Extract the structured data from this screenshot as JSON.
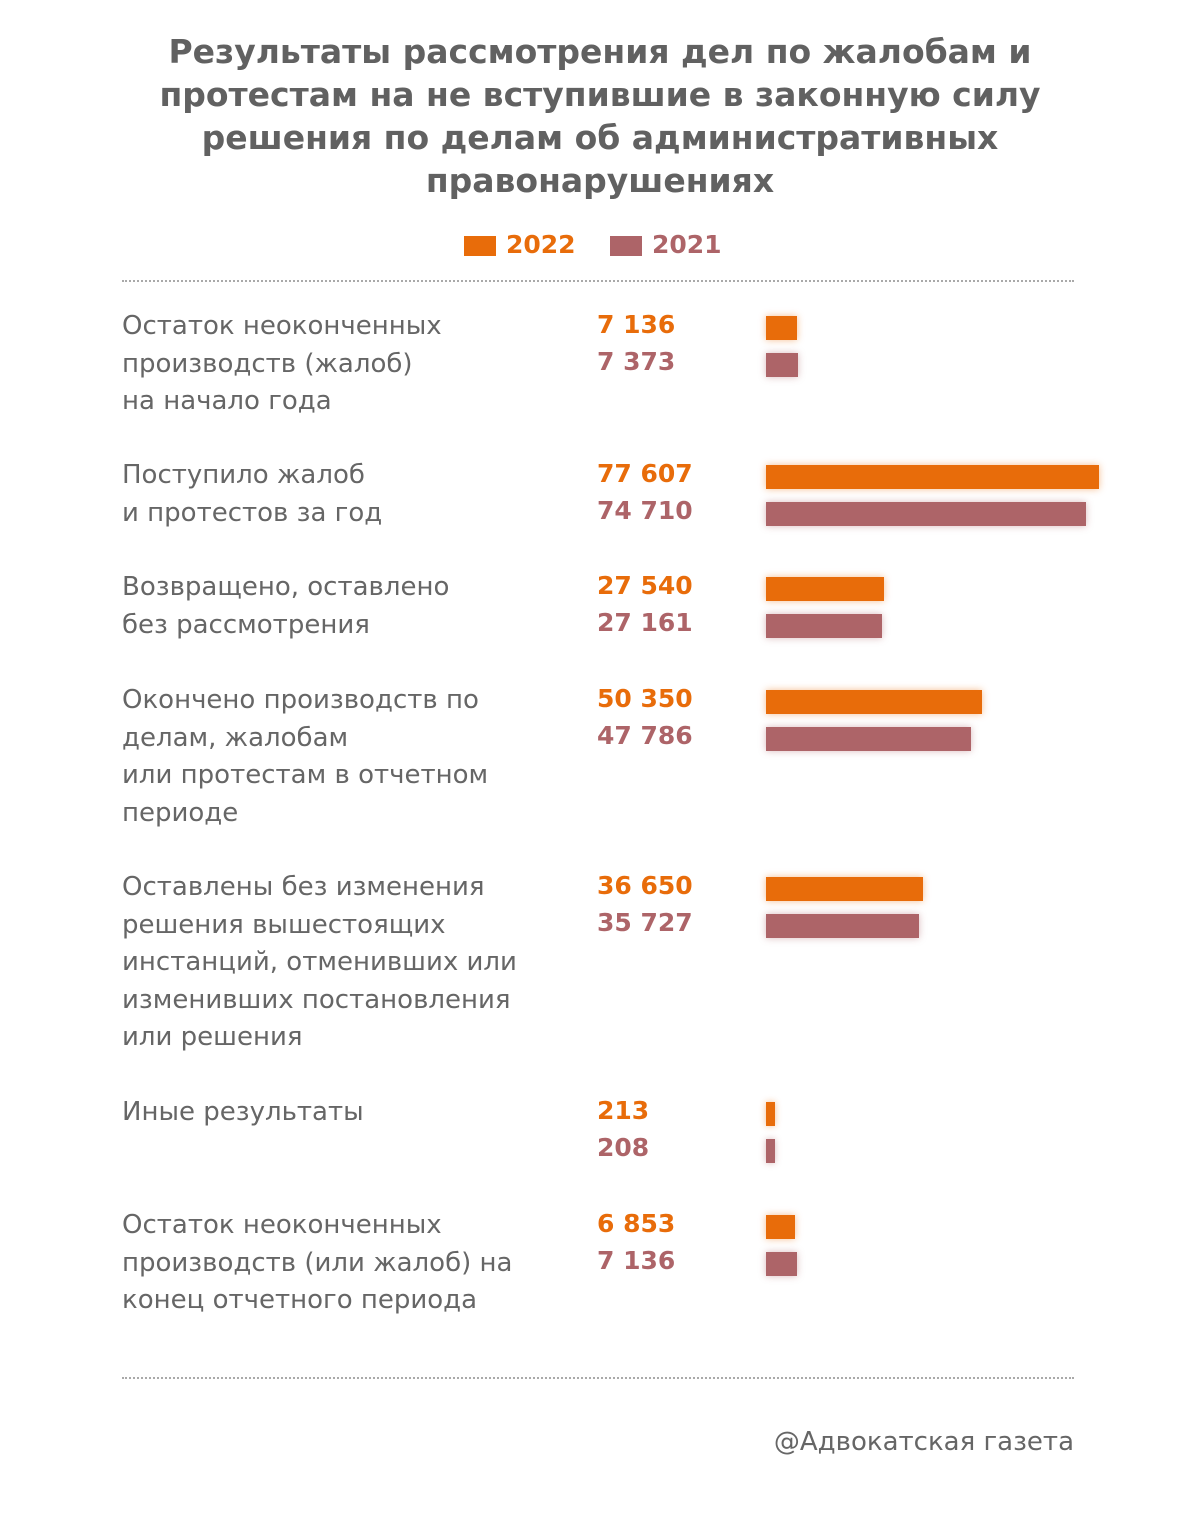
{
  "colors": {
    "series_2022": "#e86c0a",
    "series_2021": "#ad6468",
    "text": "#666666",
    "title": "#616161"
  },
  "chart_data": {
    "type": "bar",
    "orientation": "horizontal",
    "title": "Результаты рассмотрения дел по жалобам и протестам на не вступившие в законную силу решения по делам об административных правонарушениях",
    "legend_placement": "top",
    "grid": false,
    "xlim": [
      0,
      80000
    ],
    "categories": [
      "Остаток неоконченных\nпроизводств (жалоб)\nна начало года",
      "Поступило жалоб\nи протестов за год",
      "Возвращено, оставлено\nбез рассмотрения",
      "Окончено производств по\nделам, жалобам\nили протестам в отчетном\nпериоде",
      "Оставлены без изменения\nрешения вышестоящих\nинстанций, отменивших или\nизменивших постановления\nили решения",
      "Иные результаты",
      "Остаток неоконченных\nпроизводств (или жалоб) на\nконец отчетного периода"
    ],
    "series": [
      {
        "name": "2022",
        "values": [
          7136,
          77607,
          27540,
          50350,
          36650,
          213,
          6853
        ],
        "labels": [
          "7 136",
          "77 607",
          "27 540",
          "50 350",
          "36 650",
          "213",
          "6 853"
        ]
      },
      {
        "name": "2021",
        "values": [
          7373,
          74710,
          27161,
          47786,
          35727,
          208,
          7136
        ],
        "labels": [
          "7 373",
          "74 710",
          "27 161",
          "47 786",
          "35 727",
          "208",
          "7 136"
        ]
      }
    ]
  },
  "source": "@Адвокатская газета"
}
